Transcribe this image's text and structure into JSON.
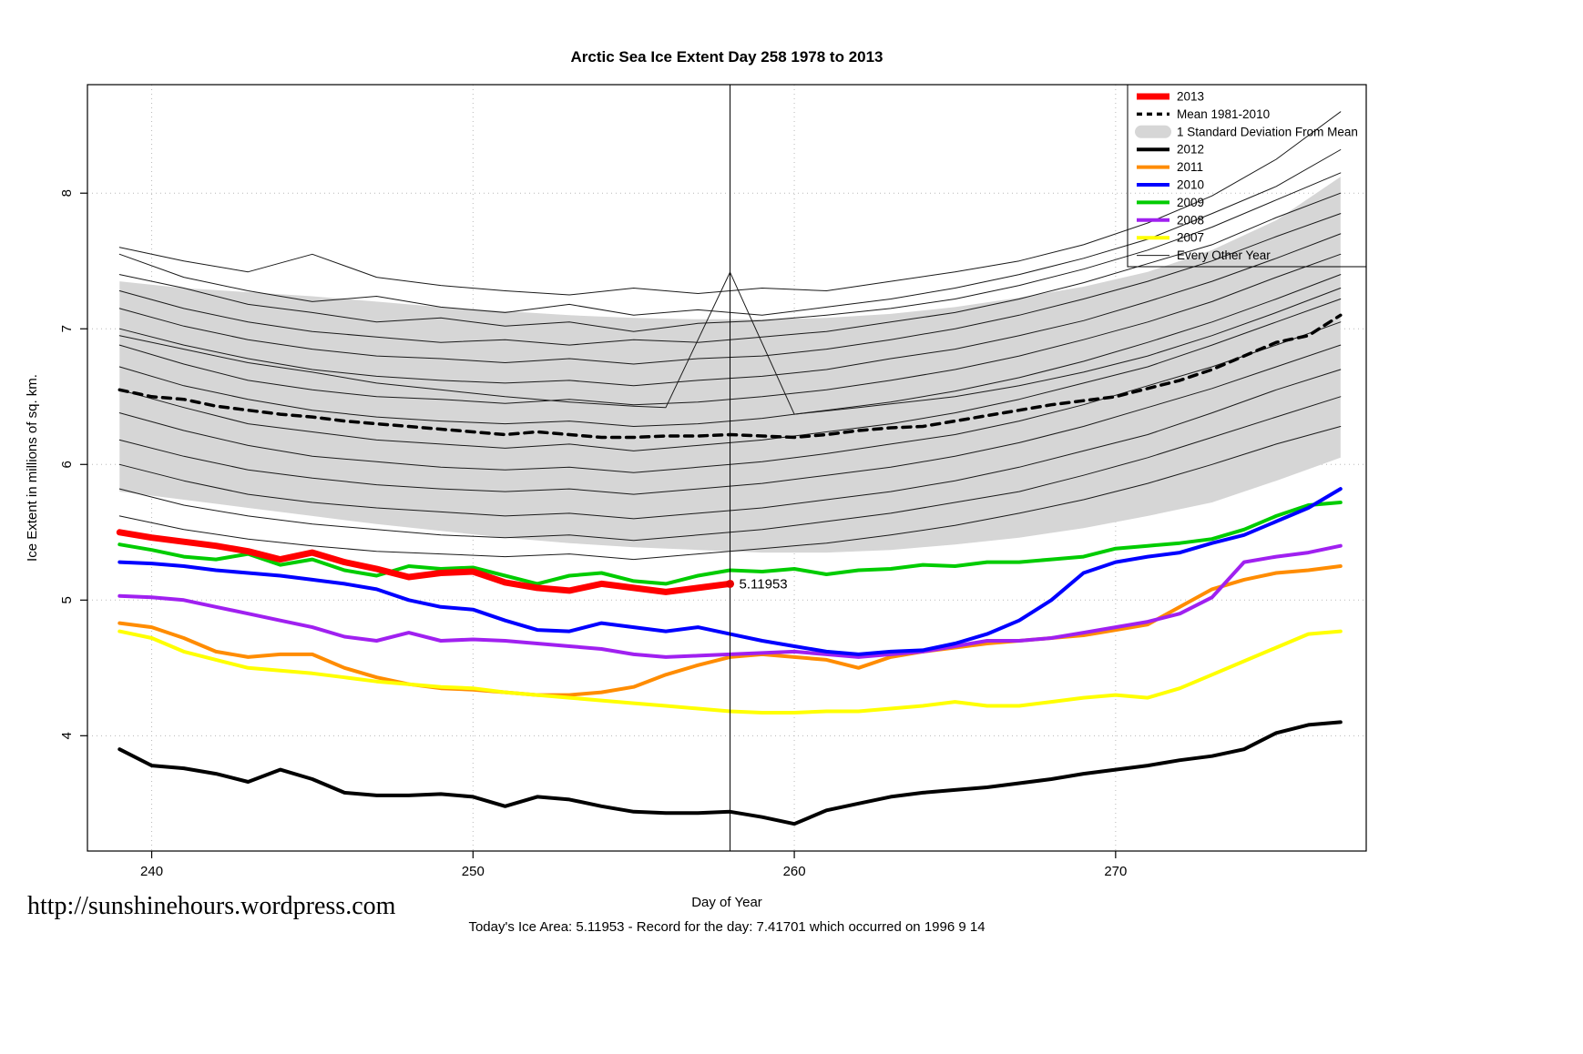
{
  "footer": {
    "url": "http://sunshinehours.wordpress.com",
    "caption": "Today's Ice Area: 5.11953  - Record for the day: 7.41701 which occurred on 1996 9 14"
  },
  "chart_data": {
    "type": "line",
    "title": "Arctic Sea Ice Extent Day 258 1978 to 2013",
    "xlabel": "Day of Year",
    "ylabel": "Ice Extent in millions of sq. km.",
    "xlim": [
      238,
      277.8
    ],
    "ylim": [
      3.15,
      8.8
    ],
    "xticks": [
      240,
      250,
      260,
      270
    ],
    "yticks": [
      4,
      5,
      6,
      7,
      8
    ],
    "grid": true,
    "grid_color": "#b8b8b8",
    "vline_x": 258,
    "annotation": {
      "text": "5.11953",
      "x": 258,
      "y": 5.11953,
      "color": "#e60000"
    },
    "band": {
      "name": "1 Standard Deviation From Mean",
      "color": "#d6d6d6",
      "x": [
        239,
        241,
        243,
        245,
        247,
        249,
        251,
        253,
        255,
        257,
        259,
        261,
        263,
        265,
        267,
        269,
        271,
        273,
        275,
        277
      ],
      "upper": [
        7.35,
        7.3,
        7.27,
        7.24,
        7.2,
        7.16,
        7.13,
        7.1,
        7.08,
        7.07,
        7.07,
        7.08,
        7.11,
        7.16,
        7.23,
        7.31,
        7.42,
        7.58,
        7.8,
        8.12
      ],
      "lower": [
        5.8,
        5.74,
        5.68,
        5.62,
        5.56,
        5.51,
        5.46,
        5.42,
        5.39,
        5.37,
        5.35,
        5.35,
        5.37,
        5.41,
        5.46,
        5.53,
        5.62,
        5.72,
        5.88,
        6.05
      ]
    },
    "mean": {
      "name": "Mean 1981-2010",
      "color": "#000000",
      "width": 3.5,
      "dash": "9 7",
      "x_start": 239,
      "values": [
        6.55,
        6.5,
        6.48,
        6.43,
        6.4,
        6.37,
        6.35,
        6.32,
        6.3,
        6.28,
        6.26,
        6.24,
        6.22,
        6.24,
        6.22,
        6.2,
        6.2,
        6.21,
        6.21,
        6.22,
        6.21,
        6.2,
        6.22,
        6.25,
        6.27,
        6.28,
        6.32,
        6.36,
        6.4,
        6.44,
        6.47,
        6.5,
        6.56,
        6.62,
        6.7,
        6.8,
        6.9,
        6.95,
        7.1
      ]
    },
    "every_other_year": {
      "name": "Every Other Year",
      "color": "#1a1a1a",
      "width": 1,
      "x": [
        239,
        241,
        243,
        245,
        247,
        249,
        251,
        253,
        255,
        257,
        259,
        261,
        263,
        265,
        267,
        269,
        271,
        273,
        275,
        277
      ],
      "lines": [
        [
          7.6,
          7.5,
          7.42,
          7.55,
          7.38,
          7.32,
          7.28,
          7.25,
          7.3,
          7.26,
          7.3,
          7.28,
          7.35,
          7.42,
          7.5,
          7.62,
          7.78,
          7.98,
          8.25,
          8.6
        ],
        [
          7.55,
          7.38,
          7.28,
          7.2,
          7.24,
          7.16,
          7.12,
          7.18,
          7.1,
          7.14,
          7.1,
          7.16,
          7.22,
          7.3,
          7.4,
          7.52,
          7.66,
          7.85,
          8.05,
          8.32
        ],
        [
          7.4,
          7.3,
          7.18,
          7.12,
          7.05,
          7.08,
          7.02,
          7.05,
          6.98,
          7.04,
          7.06,
          7.1,
          7.15,
          7.22,
          7.32,
          7.44,
          7.58,
          7.75,
          7.95,
          8.15
        ],
        [
          7.28,
          7.15,
          7.05,
          6.98,
          6.94,
          6.9,
          6.92,
          6.88,
          6.92,
          6.9,
          6.94,
          6.98,
          7.05,
          7.12,
          7.22,
          7.34,
          7.48,
          7.62,
          7.82,
          8.0
        ],
        [
          7.15,
          7.02,
          6.92,
          6.85,
          6.8,
          6.78,
          6.75,
          6.78,
          6.74,
          6.78,
          6.8,
          6.85,
          6.92,
          7.0,
          7.1,
          7.22,
          7.35,
          7.5,
          7.68,
          7.85
        ],
        [
          7.0,
          6.88,
          6.78,
          6.7,
          6.65,
          6.62,
          6.6,
          6.62,
          6.58,
          6.62,
          6.65,
          6.7,
          6.78,
          6.85,
          6.95,
          7.06,
          7.2,
          7.35,
          7.52,
          7.7
        ],
        [
          6.88,
          6.74,
          6.62,
          6.55,
          6.5,
          6.48,
          6.45,
          6.48,
          6.44,
          6.46,
          6.5,
          6.55,
          6.62,
          6.7,
          6.8,
          6.92,
          7.05,
          7.2,
          7.38,
          7.55
        ],
        [
          6.72,
          6.58,
          6.48,
          6.4,
          6.35,
          6.32,
          6.3,
          6.32,
          6.28,
          6.3,
          6.34,
          6.4,
          6.46,
          6.54,
          6.64,
          6.76,
          6.9,
          7.05,
          7.22,
          7.4
        ],
        [
          6.55,
          6.42,
          6.3,
          6.24,
          6.18,
          6.15,
          6.12,
          6.15,
          6.1,
          6.14,
          6.18,
          6.24,
          6.3,
          6.38,
          6.48,
          6.6,
          6.72,
          6.88,
          7.05,
          7.22
        ],
        [
          6.38,
          6.25,
          6.14,
          6.06,
          6.02,
          5.98,
          5.96,
          5.98,
          5.94,
          5.98,
          6.02,
          6.08,
          6.15,
          6.22,
          6.32,
          6.44,
          6.58,
          6.72,
          6.88,
          7.05
        ],
        [
          6.18,
          6.06,
          5.96,
          5.9,
          5.85,
          5.82,
          5.8,
          5.82,
          5.78,
          5.82,
          5.86,
          5.92,
          5.98,
          6.06,
          6.16,
          6.28,
          6.42,
          6.56,
          6.72,
          6.88
        ],
        [
          6.0,
          5.88,
          5.78,
          5.72,
          5.68,
          5.65,
          5.62,
          5.64,
          5.6,
          5.64,
          5.68,
          5.74,
          5.8,
          5.88,
          5.98,
          6.1,
          6.22,
          6.38,
          6.55,
          6.7
        ],
        [
          5.82,
          5.7,
          5.62,
          5.56,
          5.52,
          5.48,
          5.46,
          5.48,
          5.44,
          5.48,
          5.52,
          5.58,
          5.64,
          5.72,
          5.8,
          5.92,
          6.05,
          6.2,
          6.35,
          6.5
        ],
        [
          5.62,
          5.52,
          5.45,
          5.4,
          5.36,
          5.34,
          5.32,
          5.34,
          5.3,
          5.34,
          5.38,
          5.42,
          5.48,
          5.55,
          5.64,
          5.74,
          5.86,
          6.0,
          6.15,
          6.28
        ]
      ],
      "spike_line": {
        "x": [
          239,
          241,
          243,
          245,
          247,
          249,
          251,
          253,
          255,
          256,
          258,
          260,
          262,
          265,
          267,
          269,
          271,
          273,
          275,
          277
        ],
        "values": [
          6.95,
          6.85,
          6.75,
          6.68,
          6.6,
          6.55,
          6.5,
          6.46,
          6.43,
          6.42,
          7.417,
          6.37,
          6.42,
          6.5,
          6.58,
          6.68,
          6.8,
          6.95,
          7.12,
          7.3
        ]
      }
    },
    "series": [
      {
        "name": "2012",
        "color": "#000000",
        "width": 4,
        "x_start": 239,
        "values": [
          3.9,
          3.78,
          3.76,
          3.72,
          3.66,
          3.75,
          3.68,
          3.58,
          3.56,
          3.56,
          3.57,
          3.55,
          3.48,
          3.55,
          3.53,
          3.48,
          3.44,
          3.43,
          3.43,
          3.44,
          3.4,
          3.35,
          3.45,
          3.5,
          3.55,
          3.58,
          3.6,
          3.62,
          3.65,
          3.68,
          3.72,
          3.75,
          3.78,
          3.82,
          3.85,
          3.9,
          4.02,
          4.08,
          4.1
        ]
      },
      {
        "name": "2011",
        "color": "#ff8c00",
        "width": 4,
        "x_start": 239,
        "values": [
          4.83,
          4.8,
          4.72,
          4.62,
          4.58,
          4.6,
          4.6,
          4.5,
          4.43,
          4.38,
          4.35,
          4.34,
          4.32,
          4.3,
          4.3,
          4.32,
          4.36,
          4.45,
          4.52,
          4.58,
          4.6,
          4.58,
          4.56,
          4.5,
          4.58,
          4.62,
          4.65,
          4.68,
          4.7,
          4.72,
          4.74,
          4.78,
          4.82,
          4.95,
          5.08,
          5.15,
          5.2,
          5.22,
          5.25
        ]
      },
      {
        "name": "2007",
        "color": "#ffff00",
        "width": 4,
        "x_start": 239,
        "values": [
          4.77,
          4.72,
          4.62,
          4.56,
          4.5,
          4.48,
          4.46,
          4.43,
          4.4,
          4.38,
          4.36,
          4.35,
          4.32,
          4.3,
          4.28,
          4.26,
          4.24,
          4.22,
          4.2,
          4.18,
          4.17,
          4.17,
          4.18,
          4.18,
          4.2,
          4.22,
          4.25,
          4.22,
          4.22,
          4.25,
          4.28,
          4.3,
          4.28,
          4.35,
          4.45,
          4.55,
          4.65,
          4.75,
          4.77
        ]
      },
      {
        "name": "2008",
        "color": "#a020f0",
        "width": 4,
        "x_start": 239,
        "values": [
          5.03,
          5.02,
          5.0,
          4.95,
          4.9,
          4.85,
          4.8,
          4.73,
          4.7,
          4.76,
          4.7,
          4.71,
          4.7,
          4.68,
          4.66,
          4.64,
          4.6,
          4.58,
          4.59,
          4.6,
          4.61,
          4.62,
          4.6,
          4.58,
          4.6,
          4.62,
          4.66,
          4.7,
          4.7,
          4.72,
          4.76,
          4.8,
          4.84,
          4.9,
          5.02,
          5.28,
          5.32,
          5.35,
          5.4
        ]
      },
      {
        "name": "2009",
        "color": "#00cc00",
        "width": 4,
        "x_start": 239,
        "values": [
          5.41,
          5.37,
          5.32,
          5.3,
          5.34,
          5.26,
          5.3,
          5.22,
          5.18,
          5.25,
          5.23,
          5.24,
          5.18,
          5.12,
          5.18,
          5.2,
          5.14,
          5.12,
          5.18,
          5.22,
          5.21,
          5.23,
          5.19,
          5.22,
          5.23,
          5.26,
          5.25,
          5.28,
          5.28,
          5.3,
          5.32,
          5.38,
          5.4,
          5.42,
          5.45,
          5.52,
          5.62,
          5.7,
          5.72
        ]
      },
      {
        "name": "2010",
        "color": "#0000ff",
        "width": 4,
        "x_start": 239,
        "values": [
          5.28,
          5.27,
          5.25,
          5.22,
          5.2,
          5.18,
          5.15,
          5.12,
          5.08,
          5.0,
          4.95,
          4.93,
          4.85,
          4.78,
          4.77,
          4.83,
          4.8,
          4.77,
          4.8,
          4.75,
          4.7,
          4.66,
          4.62,
          4.6,
          4.62,
          4.63,
          4.68,
          4.75,
          4.85,
          5.0,
          5.2,
          5.28,
          5.32,
          5.35,
          5.42,
          5.48,
          5.58,
          5.68,
          5.82
        ]
      },
      {
        "name": "2013",
        "color": "#ff0000",
        "width": 7,
        "x_start": 239,
        "values": [
          5.5,
          5.46,
          5.43,
          5.4,
          5.36,
          5.3,
          5.35,
          5.28,
          5.23,
          5.17,
          5.2,
          5.21,
          5.13,
          5.09,
          5.07,
          5.12,
          5.09,
          5.06,
          5.09,
          5.12
        ]
      }
    ],
    "legend": {
      "entries": [
        {
          "label": "2013",
          "color": "#ff0000",
          "swatch": "line",
          "width": 7
        },
        {
          "label": "Mean 1981-2010",
          "color": "#000000",
          "swatch": "dashed",
          "width": 3.5
        },
        {
          "label": "1 Standard Deviation From Mean",
          "color": "#d6d6d6",
          "swatch": "band"
        },
        {
          "label": "2012",
          "color": "#000000",
          "swatch": "line",
          "width": 4
        },
        {
          "label": "2011",
          "color": "#ff8c00",
          "swatch": "line",
          "width": 4
        },
        {
          "label": "2010",
          "color": "#0000ff",
          "swatch": "line",
          "width": 4
        },
        {
          "label": "2009",
          "color": "#00cc00",
          "swatch": "line",
          "width": 4
        },
        {
          "label": "2008",
          "color": "#a020f0",
          "swatch": "line",
          "width": 4
        },
        {
          "label": "2007",
          "color": "#ffff00",
          "swatch": "line",
          "width": 4
        },
        {
          "label": "Every Other Year",
          "color": "#1a1a1a",
          "swatch": "line",
          "width": 1
        }
      ]
    }
  }
}
